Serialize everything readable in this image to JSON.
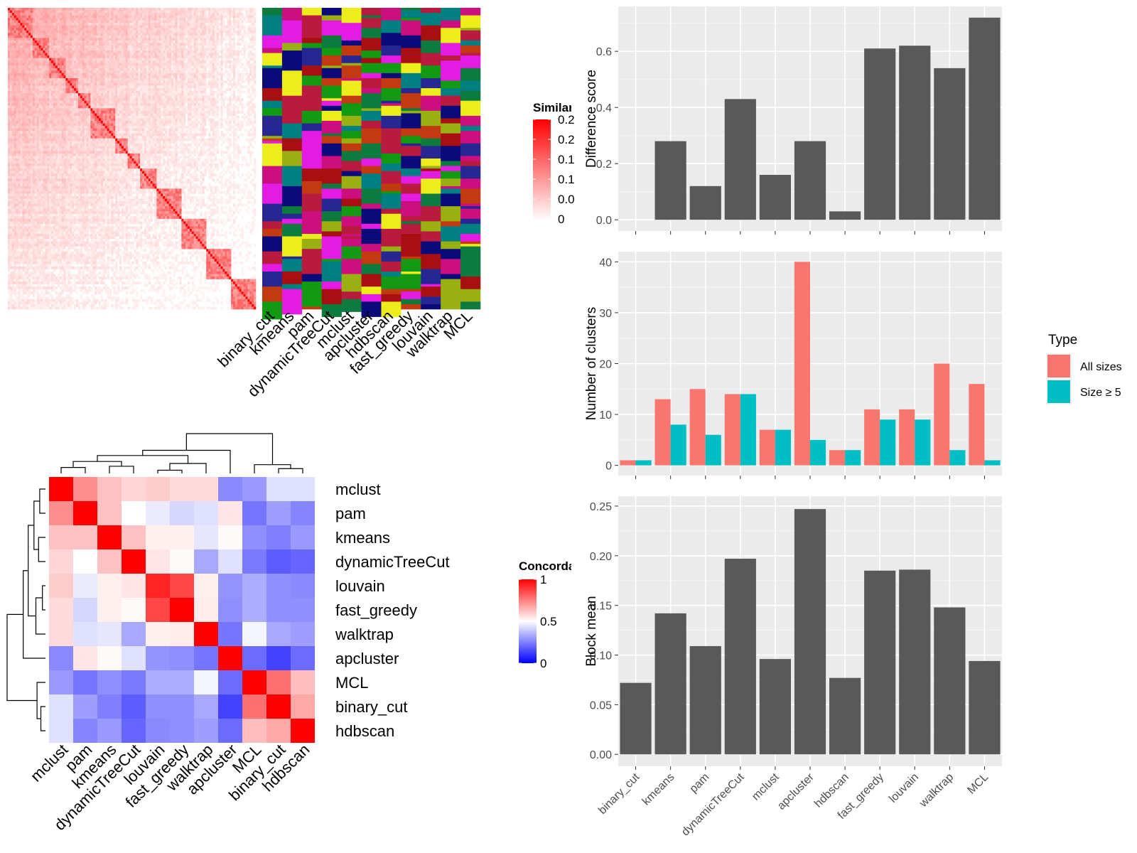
{
  "colors": {
    "panel_bg": "#ebebeb",
    "grid": "#ffffff",
    "bar_dark": "#595959",
    "all_sizes": "#f8766d",
    "size_ge5": "#00bfc4",
    "heat_high": "#ff0000",
    "heat_mid": "#ffffff",
    "heat_low": "#0000ff"
  },
  "similarity": {
    "legend_title": "Similarity",
    "legend_labels": [
      "0.2",
      "0.2",
      "0.1",
      "0.1",
      "0.0",
      "0"
    ],
    "method_labels": [
      "binary_cut",
      "kmeans",
      "pam",
      "dynamicTreeCut",
      "mclust",
      "apcluster",
      "hdbscan",
      "fast_greedy",
      "louvain",
      "walktrap",
      "MCL"
    ]
  },
  "concordance": {
    "legend_title": "Concordance",
    "legend_ticks": [
      {
        "v": 1,
        "label": "1"
      },
      {
        "v": 0.5,
        "label": "0.5"
      },
      {
        "v": 0,
        "label": "0"
      }
    ],
    "row_order": [
      "mclust",
      "pam",
      "kmeans",
      "dynamicTreeCut",
      "louvain",
      "fast_greedy",
      "walktrap",
      "apcluster",
      "MCL",
      "binary_cut",
      "hdbscan"
    ],
    "matrix": [
      [
        1.0,
        0.72,
        0.62,
        0.58,
        0.6,
        0.57,
        0.57,
        0.27,
        0.3,
        0.44,
        0.44
      ],
      [
        0.72,
        1.0,
        0.62,
        0.5,
        0.46,
        0.42,
        0.44,
        0.55,
        0.23,
        0.31,
        0.26
      ],
      [
        0.62,
        0.62,
        1.0,
        0.62,
        0.53,
        0.53,
        0.45,
        0.51,
        0.28,
        0.25,
        0.3
      ],
      [
        0.58,
        0.5,
        0.62,
        1.0,
        0.55,
        0.51,
        0.33,
        0.44,
        0.24,
        0.18,
        0.2
      ],
      [
        0.6,
        0.46,
        0.53,
        0.55,
        0.93,
        0.86,
        0.53,
        0.29,
        0.34,
        0.28,
        0.27
      ],
      [
        0.57,
        0.42,
        0.53,
        0.51,
        0.86,
        1.0,
        0.54,
        0.28,
        0.34,
        0.28,
        0.28
      ],
      [
        0.57,
        0.44,
        0.45,
        0.33,
        0.53,
        0.54,
        1.0,
        0.23,
        0.48,
        0.33,
        0.31
      ],
      [
        0.27,
        0.55,
        0.51,
        0.44,
        0.29,
        0.28,
        0.23,
        1.0,
        0.21,
        0.13,
        0.21
      ],
      [
        0.3,
        0.23,
        0.28,
        0.24,
        0.34,
        0.34,
        0.48,
        0.21,
        1.0,
        0.78,
        0.63
      ],
      [
        0.44,
        0.31,
        0.25,
        0.18,
        0.28,
        0.28,
        0.33,
        0.13,
        0.78,
        1.0,
        0.67
      ],
      [
        0.44,
        0.26,
        0.3,
        0.2,
        0.27,
        0.28,
        0.31,
        0.21,
        0.63,
        0.67,
        1.0
      ]
    ]
  },
  "chart_data": [
    {
      "type": "bar",
      "categories": [
        "binary_cut",
        "kmeans",
        "pam",
        "dynamicTreeCut",
        "mclust",
        "apcluster",
        "hdbscan",
        "fast_greedy",
        "louvain",
        "walktrap",
        "MCL"
      ],
      "values": [
        0.0,
        0.28,
        0.12,
        0.43,
        0.16,
        0.28,
        0.03,
        0.61,
        0.62,
        0.54,
        0.72
      ],
      "ylabel": "Difference score",
      "yticks": [
        "0.0",
        "0.2",
        "0.4",
        "0.6"
      ],
      "ylim": [
        -0.04,
        0.76
      ],
      "grid": true
    },
    {
      "type": "bar",
      "categories": [
        "binary_cut",
        "kmeans",
        "pam",
        "dynamicTreeCut",
        "mclust",
        "apcluster",
        "hdbscan",
        "fast_greedy",
        "louvain",
        "walktrap",
        "MCL"
      ],
      "series": [
        {
          "name": "All sizes",
          "values": [
            1,
            13,
            15,
            14,
            7,
            40,
            3,
            11,
            11,
            20,
            16
          ]
        },
        {
          "name": "Size ≥ 5",
          "values": [
            1,
            8,
            6,
            14,
            7,
            5,
            3,
            9,
            9,
            3,
            1
          ]
        }
      ],
      "ylabel": "Number of clusters",
      "yticks": [
        "0",
        "10",
        "20",
        "30",
        "40"
      ],
      "ylim": [
        -2,
        42
      ],
      "legend_title": "Type",
      "legend_placement": "right",
      "grid": true
    },
    {
      "type": "bar",
      "categories": [
        "binary_cut",
        "kmeans",
        "pam",
        "dynamicTreeCut",
        "mclust",
        "apcluster",
        "hdbscan",
        "fast_greedy",
        "louvain",
        "walktrap",
        "MCL"
      ],
      "values": [
        0.072,
        0.142,
        0.109,
        0.197,
        0.096,
        0.247,
        0.077,
        0.185,
        0.186,
        0.148,
        0.094
      ],
      "ylabel": "Block mean",
      "yticks": [
        "0.00",
        "0.05",
        "0.10",
        "0.15",
        "0.20",
        "0.25"
      ],
      "ylim": [
        -0.012,
        0.26
      ],
      "xlabels": [
        "binary_cut",
        "kmeans",
        "pam",
        "dynamicTreeCut",
        "mclust",
        "apcluster",
        "hdbscan",
        "fast_greedy",
        "louvain",
        "walktrap",
        "MCL"
      ],
      "grid": true
    }
  ]
}
